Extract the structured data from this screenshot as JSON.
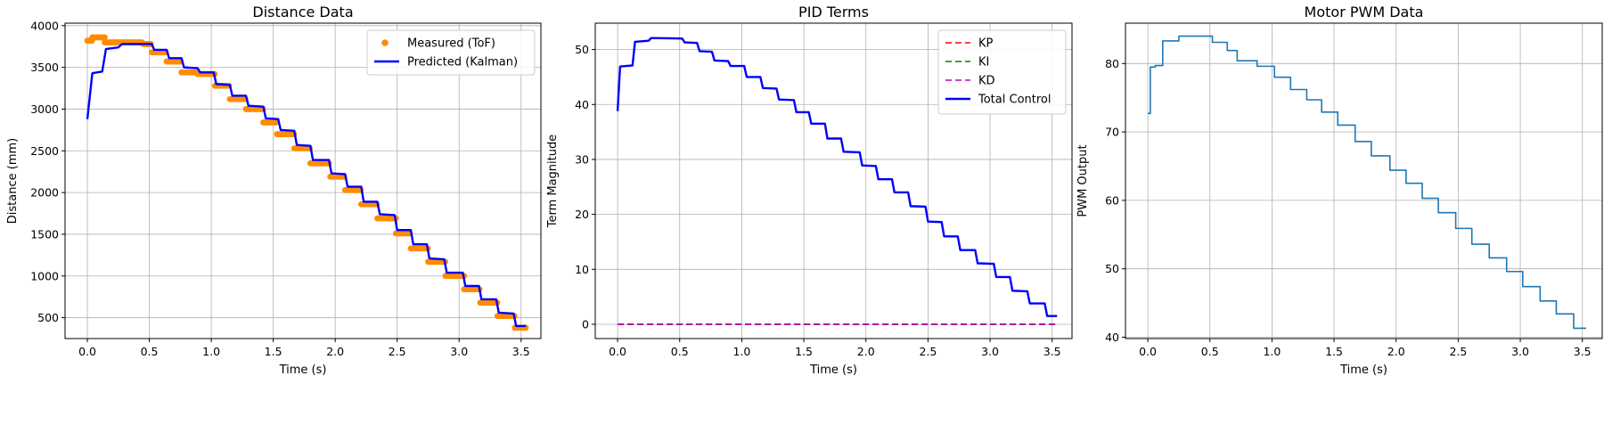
{
  "chart_data": [
    {
      "type": "scatter+line",
      "title": "Distance Data",
      "xlabel": "Time (s)",
      "ylabel": "Distance (mm)",
      "xlim": [
        -0.18,
        3.66
      ],
      "ylim": [
        250,
        4030
      ],
      "xticks": [
        0.0,
        0.5,
        1.0,
        1.5,
        2.0,
        2.5,
        3.0,
        3.5
      ],
      "xtick_labels": [
        "0.0",
        "0.5",
        "1.0",
        "1.5",
        "2.0",
        "2.5",
        "3.0",
        "3.5"
      ],
      "yticks": [
        500,
        1000,
        1500,
        2000,
        2500,
        3000,
        3500,
        4000
      ],
      "ytick_labels": [
        "500",
        "1000",
        "1500",
        "2000",
        "2500",
        "3000",
        "3500",
        "4000"
      ],
      "grid": true,
      "legend_position": "top-right",
      "series": [
        {
          "name": "Measured (ToF)",
          "kind": "scatter-steps",
          "color": "#ff8c00",
          "steps": [
            [
              0.0,
              0.04,
              3820
            ],
            [
              0.04,
              0.14,
              3860
            ],
            [
              0.14,
              0.45,
              3800
            ],
            [
              0.45,
              0.52,
              3780
            ],
            [
              0.52,
              0.64,
              3680
            ],
            [
              0.64,
              0.76,
              3570
            ],
            [
              0.76,
              0.89,
              3440
            ],
            [
              0.89,
              1.03,
              3420
            ],
            [
              1.03,
              1.15,
              3280
            ],
            [
              1.15,
              1.28,
              3120
            ],
            [
              1.28,
              1.42,
              3000
            ],
            [
              1.42,
              1.53,
              2840
            ],
            [
              1.53,
              1.67,
              2700
            ],
            [
              1.67,
              1.8,
              2530
            ],
            [
              1.8,
              1.96,
              2350
            ],
            [
              1.96,
              2.08,
              2190
            ],
            [
              2.08,
              2.21,
              2030
            ],
            [
              2.21,
              2.34,
              1860
            ],
            [
              2.34,
              2.49,
              1690
            ],
            [
              2.49,
              2.61,
              1510
            ],
            [
              2.61,
              2.75,
              1330
            ],
            [
              2.75,
              2.89,
              1170
            ],
            [
              2.89,
              3.04,
              1000
            ],
            [
              3.04,
              3.17,
              840
            ],
            [
              3.17,
              3.31,
              680
            ],
            [
              3.31,
              3.45,
              520
            ],
            [
              3.45,
              3.54,
              380
            ]
          ]
        },
        {
          "name": "Predicted (Kalman)",
          "kind": "line",
          "color": "#0000ff",
          "points": [
            [
              0.0,
              2880
            ],
            [
              0.04,
              3430
            ],
            [
              0.12,
              3450
            ],
            [
              0.15,
              3720
            ],
            [
              0.25,
              3740
            ],
            [
              0.28,
              3780
            ],
            [
              0.52,
              3780
            ],
            [
              0.54,
              3710
            ],
            [
              0.64,
              3710
            ],
            [
              0.66,
              3610
            ],
            [
              0.76,
              3610
            ],
            [
              0.78,
              3500
            ],
            [
              0.89,
              3490
            ],
            [
              0.91,
              3440
            ],
            [
              1.02,
              3440
            ],
            [
              1.04,
              3300
            ],
            [
              1.15,
              3290
            ],
            [
              1.17,
              3160
            ],
            [
              1.28,
              3160
            ],
            [
              1.3,
              3040
            ],
            [
              1.42,
              3030
            ],
            [
              1.44,
              2890
            ],
            [
              1.54,
              2880
            ],
            [
              1.56,
              2750
            ],
            [
              1.67,
              2740
            ],
            [
              1.69,
              2570
            ],
            [
              1.8,
              2560
            ],
            [
              1.82,
              2390
            ],
            [
              1.95,
              2390
            ],
            [
              1.97,
              2230
            ],
            [
              2.08,
              2220
            ],
            [
              2.1,
              2070
            ],
            [
              2.21,
              2070
            ],
            [
              2.23,
              1890
            ],
            [
              2.34,
              1890
            ],
            [
              2.36,
              1740
            ],
            [
              2.48,
              1730
            ],
            [
              2.5,
              1550
            ],
            [
              2.61,
              1550
            ],
            [
              2.63,
              1380
            ],
            [
              2.74,
              1380
            ],
            [
              2.76,
              1210
            ],
            [
              2.88,
              1200
            ],
            [
              2.9,
              1040
            ],
            [
              3.03,
              1040
            ],
            [
              3.05,
              880
            ],
            [
              3.16,
              880
            ],
            [
              3.18,
              720
            ],
            [
              3.3,
              720
            ],
            [
              3.32,
              560
            ],
            [
              3.44,
              550
            ],
            [
              3.46,
              400
            ],
            [
              3.54,
              400
            ]
          ]
        }
      ]
    },
    {
      "type": "line",
      "title": "PID Terms",
      "xlabel": "Time (s)",
      "ylabel": "Term Magnitude",
      "xlim": [
        -0.18,
        3.66
      ],
      "ylim": [
        -2.6,
        54.8
      ],
      "xticks": [
        0.0,
        0.5,
        1.0,
        1.5,
        2.0,
        2.5,
        3.0,
        3.5
      ],
      "xtick_labels": [
        "0.0",
        "0.5",
        "1.0",
        "1.5",
        "2.0",
        "2.5",
        "3.0",
        "3.5"
      ],
      "yticks": [
        0,
        10,
        20,
        30,
        40,
        50
      ],
      "ytick_labels": [
        "0",
        "10",
        "20",
        "30",
        "40",
        "50"
      ],
      "grid": true,
      "legend_position": "top-right",
      "series": [
        {
          "name": "KP",
          "color": "#ff0000",
          "dash": "dashed",
          "points": [
            [
              0.0,
              0
            ],
            [
              3.54,
              0
            ]
          ]
        },
        {
          "name": "KI",
          "color": "#008000",
          "dash": "dashed",
          "points": [
            [
              0.0,
              0
            ],
            [
              3.54,
              0
            ]
          ]
        },
        {
          "name": "KD",
          "color": "#bf00bf",
          "dash": "dashed",
          "points": [
            [
              0.0,
              0
            ],
            [
              3.54,
              0
            ]
          ]
        },
        {
          "name": "Total Control",
          "color": "#0000ff",
          "dash": "solid",
          "points": [
            [
              0.0,
              38.8
            ],
            [
              0.02,
              46.9
            ],
            [
              0.12,
              47.1
            ],
            [
              0.14,
              51.4
            ],
            [
              0.25,
              51.6
            ],
            [
              0.27,
              52.1
            ],
            [
              0.52,
              52.0
            ],
            [
              0.54,
              51.3
            ],
            [
              0.64,
              51.2
            ],
            [
              0.66,
              49.7
            ],
            [
              0.76,
              49.6
            ],
            [
              0.78,
              48.0
            ],
            [
              0.89,
              47.9
            ],
            [
              0.91,
              47.0
            ],
            [
              1.02,
              47.0
            ],
            [
              1.04,
              45.0
            ],
            [
              1.15,
              45.0
            ],
            [
              1.17,
              43.0
            ],
            [
              1.28,
              42.9
            ],
            [
              1.3,
              40.9
            ],
            [
              1.42,
              40.8
            ],
            [
              1.44,
              38.6
            ],
            [
              1.54,
              38.6
            ],
            [
              1.56,
              36.5
            ],
            [
              1.67,
              36.5
            ],
            [
              1.69,
              33.8
            ],
            [
              1.8,
              33.8
            ],
            [
              1.82,
              31.4
            ],
            [
              1.95,
              31.3
            ],
            [
              1.97,
              28.9
            ],
            [
              2.08,
              28.8
            ],
            [
              2.1,
              26.4
            ],
            [
              2.21,
              26.4
            ],
            [
              2.23,
              24.0
            ],
            [
              2.34,
              24.0
            ],
            [
              2.36,
              21.5
            ],
            [
              2.48,
              21.4
            ],
            [
              2.5,
              18.7
            ],
            [
              2.61,
              18.6
            ],
            [
              2.63,
              16.0
            ],
            [
              2.74,
              16.0
            ],
            [
              2.76,
              13.5
            ],
            [
              2.88,
              13.5
            ],
            [
              2.9,
              11.1
            ],
            [
              3.03,
              11.0
            ],
            [
              3.05,
              8.6
            ],
            [
              3.16,
              8.6
            ],
            [
              3.18,
              6.1
            ],
            [
              3.3,
              6.0
            ],
            [
              3.32,
              3.8
            ],
            [
              3.44,
              3.8
            ],
            [
              3.46,
              1.5
            ],
            [
              3.54,
              1.5
            ]
          ]
        }
      ]
    },
    {
      "type": "line",
      "title": "Motor PWM Data",
      "xlabel": "Time (s)",
      "ylabel": "PWM Output",
      "xlim": [
        -0.18,
        3.66
      ],
      "ylim": [
        39.8,
        85.9
      ],
      "xticks": [
        0.0,
        0.5,
        1.0,
        1.5,
        2.0,
        2.5,
        3.0,
        3.5
      ],
      "xtick_labels": [
        "0.0",
        "0.5",
        "1.0",
        "1.5",
        "2.0",
        "2.5",
        "3.0",
        "3.5"
      ],
      "yticks": [
        40,
        50,
        60,
        70,
        80
      ],
      "ytick_labels": [
        "40",
        "50",
        "60",
        "70",
        "80"
      ],
      "grid": true,
      "series": [
        {
          "name": "PWM",
          "color": "#1f77b4",
          "kind": "step",
          "points": [
            [
              0.0,
              72.7
            ],
            [
              0.02,
              72.7
            ],
            [
              0.02,
              79.5
            ],
            [
              0.06,
              79.5
            ],
            [
              0.06,
              79.7
            ],
            [
              0.12,
              79.7
            ],
            [
              0.12,
              83.3
            ],
            [
              0.25,
              83.3
            ],
            [
              0.25,
              84.0
            ],
            [
              0.52,
              84.0
            ],
            [
              0.52,
              83.1
            ],
            [
              0.64,
              83.1
            ],
            [
              0.64,
              81.9
            ],
            [
              0.72,
              81.9
            ],
            [
              0.72,
              80.4
            ],
            [
              0.88,
              80.4
            ],
            [
              0.88,
              79.6
            ],
            [
              1.02,
              79.6
            ],
            [
              1.02,
              78.0
            ],
            [
              1.15,
              78.0
            ],
            [
              1.15,
              76.2
            ],
            [
              1.28,
              76.2
            ],
            [
              1.28,
              74.7
            ],
            [
              1.4,
              74.7
            ],
            [
              1.4,
              72.9
            ],
            [
              1.53,
              72.9
            ],
            [
              1.53,
              71.0
            ],
            [
              1.67,
              71.0
            ],
            [
              1.67,
              68.6
            ],
            [
              1.8,
              68.6
            ],
            [
              1.8,
              66.5
            ],
            [
              1.95,
              66.5
            ],
            [
              1.95,
              64.4
            ],
            [
              2.08,
              64.4
            ],
            [
              2.08,
              62.5
            ],
            [
              2.21,
              62.5
            ],
            [
              2.21,
              60.3
            ],
            [
              2.34,
              60.3
            ],
            [
              2.34,
              58.2
            ],
            [
              2.48,
              58.2
            ],
            [
              2.48,
              55.9
            ],
            [
              2.61,
              55.9
            ],
            [
              2.61,
              53.6
            ],
            [
              2.75,
              53.6
            ],
            [
              2.75,
              51.6
            ],
            [
              2.89,
              51.6
            ],
            [
              2.89,
              49.6
            ],
            [
              3.02,
              49.6
            ],
            [
              3.02,
              47.4
            ],
            [
              3.16,
              47.4
            ],
            [
              3.16,
              45.3
            ],
            [
              3.29,
              45.3
            ],
            [
              3.29,
              43.4
            ],
            [
              3.43,
              43.4
            ],
            [
              3.43,
              41.3
            ],
            [
              3.53,
              41.3
            ]
          ]
        }
      ]
    }
  ]
}
